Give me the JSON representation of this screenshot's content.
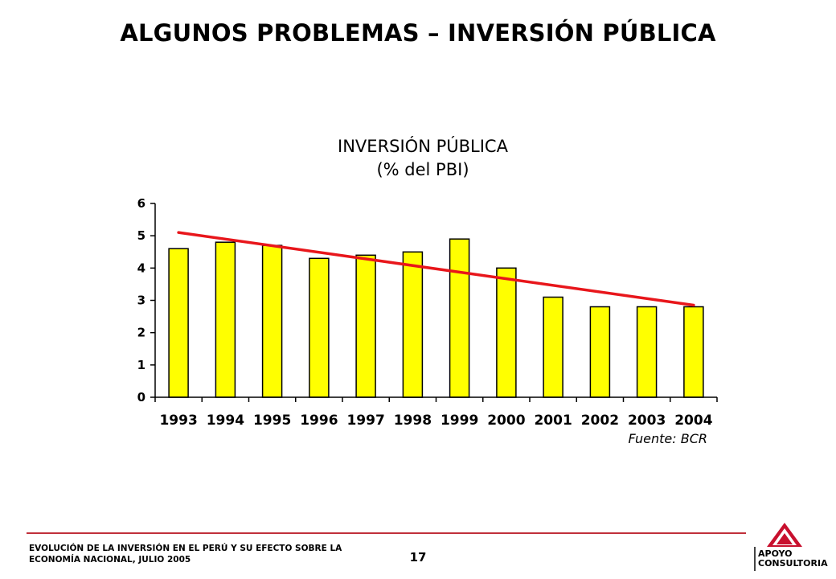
{
  "slide": {
    "title": "ALGUNOS PROBLEMAS – INVERSIÓN PÚBLICA",
    "footer_line1": "EVOLUCIÓN DE LA INVERSIÓN EN EL PERÚ Y SU EFECTO SOBRE LA",
    "footer_line2": "ECONOMÍA NACIONAL, JULIO 2005",
    "page_number": "17",
    "logo_line1": "APOYO",
    "logo_line2": "CONSULTORIA",
    "logo_icon": "apoyo-triangle-logo"
  },
  "chart_data": {
    "type": "bar",
    "title": "INVERSIÓN PÚBLICA",
    "subtitle": "(% del PBI)",
    "categories": [
      "1993",
      "1994",
      "1995",
      "1996",
      "1997",
      "1998",
      "1999",
      "2000",
      "2001",
      "2002",
      "2003",
      "2004"
    ],
    "series": [
      {
        "values": [
          4.6,
          4.8,
          4.7,
          4.3,
          4.4,
          4.5,
          4.9,
          4.0,
          3.1,
          2.8,
          2.8,
          2.8
        ]
      }
    ],
    "trendline": {
      "start": 5.1,
      "end": 2.85
    },
    "ylim": [
      0,
      6
    ],
    "yticks": [
      "0",
      "1",
      "2",
      "3",
      "4",
      "5",
      "6"
    ],
    "grid": false,
    "source": "Fuente: BCR",
    "colors": {
      "bar": "#ffff00",
      "bar_outline": "#000000",
      "trendline": "#e8161b"
    }
  }
}
